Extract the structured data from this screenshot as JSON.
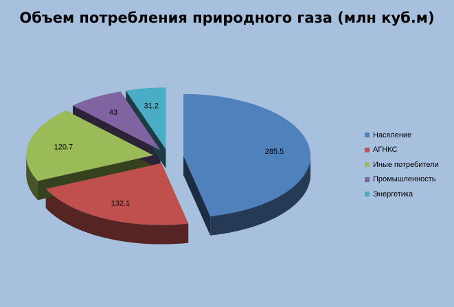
{
  "chart_data": {
    "type": "pie",
    "title": "Объем потребления природного газа (млн куб.м)",
    "legend_position": "right",
    "exploded": true,
    "style": "3d",
    "slices": [
      {
        "label": "Население",
        "value": 285.5,
        "value_label": "285.5",
        "color": "#4f81bd"
      },
      {
        "label": "АГНКС",
        "value": 132.1,
        "value_label": "132.1",
        "color": "#c0504d"
      },
      {
        "label": "Иные потребители",
        "value": 120.7,
        "value_label": "120.7",
        "color": "#9bbb59"
      },
      {
        "label": "Промышленность",
        "value": 43,
        "value_label": "43",
        "color": "#8064a2"
      },
      {
        "label": "Энергетика",
        "value": 31.2,
        "value_label": "31.2",
        "color": "#4bacc6"
      }
    ]
  }
}
